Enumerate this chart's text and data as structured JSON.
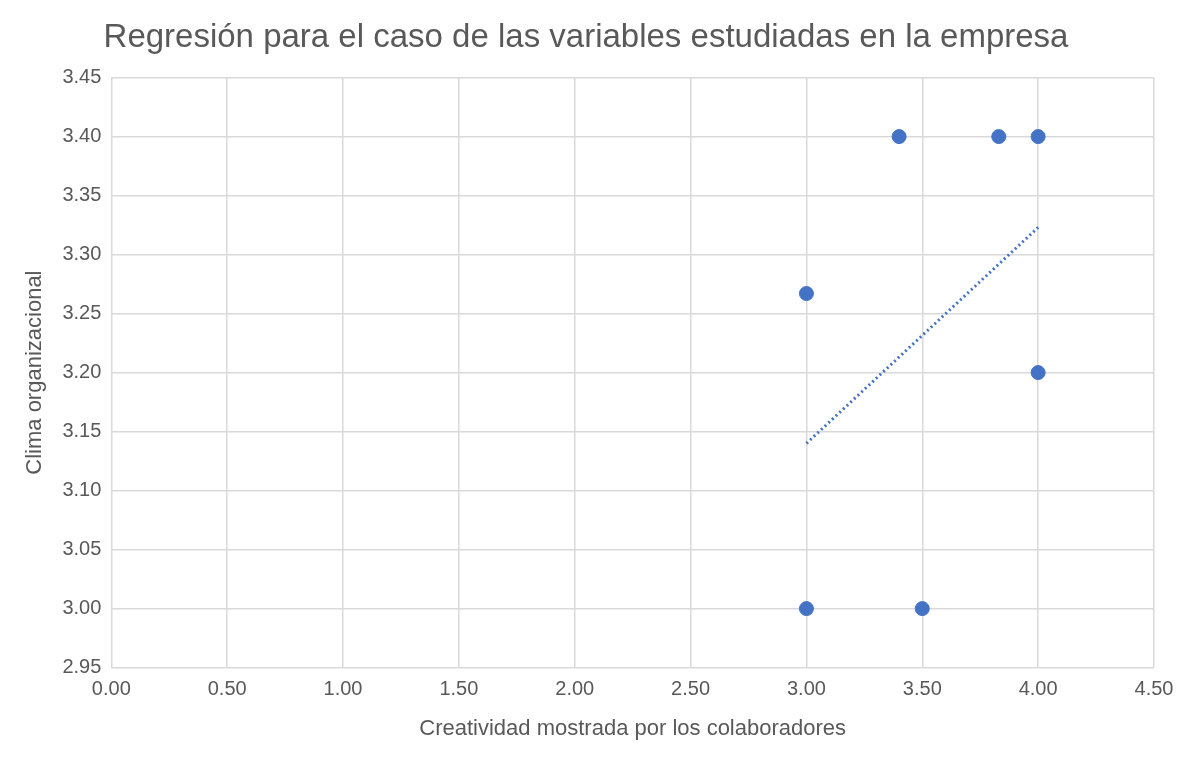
{
  "chart_data": {
    "type": "scatter",
    "title": "Regresión para el caso de las variables estudiadas en la empresa",
    "xlabel": "Creatividad mostrada por los colaboradores",
    "ylabel": "Clima organizacional",
    "xlim": [
      0,
      4.5
    ],
    "xticks": [
      {
        "value": 0,
        "label": "0.00"
      },
      {
        "value": 0.5,
        "label": "0.50"
      },
      {
        "value": 1,
        "label": "1.00"
      },
      {
        "value": 1.5,
        "label": "1.50"
      },
      {
        "value": 2,
        "label": "2.00"
      },
      {
        "value": 2.5,
        "label": "2.50"
      },
      {
        "value": 3,
        "label": "3.00"
      },
      {
        "value": 3.5,
        "label": "3.50"
      },
      {
        "value": 4,
        "label": "4.00"
      },
      {
        "value": 4.5,
        "label": "4.50"
      }
    ],
    "ylim": [
      2.95,
      3.45
    ],
    "yticks": [
      {
        "value": 2.95,
        "label": "2.95"
      },
      {
        "value": 3,
        "label": "3.00"
      },
      {
        "value": 3.05,
        "label": "3.05"
      },
      {
        "value": 3.1,
        "label": "3.10"
      },
      {
        "value": 3.15,
        "label": "3.15"
      },
      {
        "value": 3.2,
        "label": "3.20"
      },
      {
        "value": 3.25,
        "label": "3.25"
      },
      {
        "value": 3.3,
        "label": "3.30"
      },
      {
        "value": 3.35,
        "label": "3.35"
      },
      {
        "value": 3.4,
        "label": "3.40"
      },
      {
        "value": 3.45,
        "label": "3.45"
      }
    ],
    "grid": true,
    "legend": false,
    "marker": "circle",
    "series": [
      {
        "type": "scatter",
        "color": "#4472c4",
        "x": [
          3.0,
          3.4,
          3.83,
          4.0,
          4.0,
          3.0,
          3.5
        ],
        "values": [
          3.267,
          3.4,
          3.4,
          3.4,
          3.2,
          3.0,
          3.0
        ]
      },
      {
        "type": "line",
        "color": "#4472c4",
        "line_style": "dotted",
        "marker": "none",
        "x": [
          3.0,
          4.0
        ],
        "values": [
          3.14,
          3.323
        ]
      }
    ]
  }
}
